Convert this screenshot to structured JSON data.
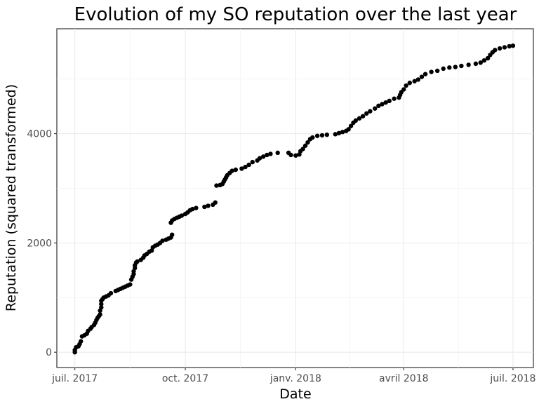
{
  "chart_data": {
    "type": "scatter",
    "title": "Evolution of my SO reputation over the last year",
    "xlabel": "Date",
    "ylabel": "Reputation (squared transformed)",
    "x_ticks": [
      {
        "date": "2017-07-01",
        "label": "juil. 2017"
      },
      {
        "date": "2017-10-01",
        "label": "oct. 2017"
      },
      {
        "date": "2018-01-01",
        "label": "janv. 2018"
      },
      {
        "date": "2018-04-01",
        "label": "avril 2018"
      },
      {
        "date": "2018-07-01",
        "label": "juil. 2018"
      }
    ],
    "y_ticks": [
      {
        "value": 0,
        "label": "0"
      },
      {
        "value": 2000,
        "label": "2000"
      },
      {
        "value": 4000,
        "label": "4000"
      }
    ],
    "xlim": [
      "2017-06-16",
      "2018-07-18"
    ],
    "ylim": [
      -280,
      5920
    ],
    "grid": true,
    "point_color": "#000000",
    "series": [
      {
        "points": [
          [
            "2017-07-01",
            0
          ],
          [
            "2017-07-01",
            40
          ],
          [
            "2017-07-02",
            90
          ],
          [
            "2017-07-04",
            110
          ],
          [
            "2017-07-05",
            150
          ],
          [
            "2017-07-06",
            200
          ],
          [
            "2017-07-07",
            290
          ],
          [
            "2017-07-09",
            310
          ],
          [
            "2017-07-11",
            340
          ],
          [
            "2017-07-12",
            390
          ],
          [
            "2017-07-14",
            430
          ],
          [
            "2017-07-15",
            460
          ],
          [
            "2017-07-17",
            500
          ],
          [
            "2017-07-18",
            540
          ],
          [
            "2017-07-19",
            590
          ],
          [
            "2017-07-20",
            630
          ],
          [
            "2017-07-21",
            660
          ],
          [
            "2017-07-22",
            690
          ],
          [
            "2017-07-22",
            760
          ],
          [
            "2017-07-23",
            820
          ],
          [
            "2017-07-23",
            880
          ],
          [
            "2017-07-23",
            940
          ],
          [
            "2017-07-24",
            970
          ],
          [
            "2017-07-25",
            1000
          ],
          [
            "2017-07-27",
            1020
          ],
          [
            "2017-07-29",
            1040
          ],
          [
            "2017-07-31",
            1080
          ],
          [
            "2017-08-04",
            1120
          ],
          [
            "2017-08-06",
            1140
          ],
          [
            "2017-08-08",
            1160
          ],
          [
            "2017-08-10",
            1180
          ],
          [
            "2017-08-12",
            1200
          ],
          [
            "2017-08-14",
            1220
          ],
          [
            "2017-08-16",
            1240
          ],
          [
            "2017-08-17",
            1330
          ],
          [
            "2017-08-18",
            1380
          ],
          [
            "2017-08-19",
            1430
          ],
          [
            "2017-08-19",
            1480
          ],
          [
            "2017-08-20",
            1540
          ],
          [
            "2017-08-20",
            1590
          ],
          [
            "2017-08-21",
            1640
          ],
          [
            "2017-08-22",
            1660
          ],
          [
            "2017-08-25",
            1690
          ],
          [
            "2017-08-27",
            1730
          ],
          [
            "2017-08-28",
            1770
          ],
          [
            "2017-08-30",
            1800
          ],
          [
            "2017-09-01",
            1840
          ],
          [
            "2017-09-03",
            1860
          ],
          [
            "2017-09-04",
            1920
          ],
          [
            "2017-09-06",
            1950
          ],
          [
            "2017-09-08",
            1970
          ],
          [
            "2017-09-10",
            2000
          ],
          [
            "2017-09-12",
            2040
          ],
          [
            "2017-09-15",
            2060
          ],
          [
            "2017-09-17",
            2080
          ],
          [
            "2017-09-19",
            2100
          ],
          [
            "2017-09-20",
            2150
          ],
          [
            "2017-09-19",
            2370
          ],
          [
            "2017-09-20",
            2410
          ],
          [
            "2017-09-22",
            2440
          ],
          [
            "2017-09-24",
            2460
          ],
          [
            "2017-09-26",
            2480
          ],
          [
            "2017-09-28",
            2500
          ],
          [
            "2017-10-01",
            2530
          ],
          [
            "2017-10-03",
            2560
          ],
          [
            "2017-10-05",
            2600
          ],
          [
            "2017-10-07",
            2620
          ],
          [
            "2017-10-10",
            2640
          ],
          [
            "2017-10-17",
            2660
          ],
          [
            "2017-10-20",
            2680
          ],
          [
            "2017-10-24",
            2700
          ],
          [
            "2017-10-26",
            2740
          ],
          [
            "2017-10-27",
            3050
          ],
          [
            "2017-10-30",
            3060
          ],
          [
            "2017-11-01",
            3080
          ],
          [
            "2017-11-02",
            3120
          ],
          [
            "2017-11-03",
            3160
          ],
          [
            "2017-11-04",
            3200
          ],
          [
            "2017-11-05",
            3240
          ],
          [
            "2017-11-07",
            3280
          ],
          [
            "2017-11-09",
            3320
          ],
          [
            "2017-11-12",
            3340
          ],
          [
            "2017-11-17",
            3360
          ],
          [
            "2017-11-20",
            3390
          ],
          [
            "2017-11-23",
            3430
          ],
          [
            "2017-11-26",
            3480
          ],
          [
            "2017-11-30",
            3510
          ],
          [
            "2017-12-02",
            3550
          ],
          [
            "2017-12-05",
            3580
          ],
          [
            "2017-12-08",
            3610
          ],
          [
            "2017-12-11",
            3630
          ],
          [
            "2017-12-17",
            3650
          ],
          [
            "2017-12-26",
            3650
          ],
          [
            "2017-12-28",
            3610
          ],
          [
            "2018-01-01",
            3600
          ],
          [
            "2018-01-04",
            3620
          ],
          [
            "2018-01-05",
            3680
          ],
          [
            "2018-01-07",
            3720
          ],
          [
            "2018-01-09",
            3780
          ],
          [
            "2018-01-11",
            3840
          ],
          [
            "2018-01-13",
            3900
          ],
          [
            "2018-01-15",
            3930
          ],
          [
            "2018-01-19",
            3960
          ],
          [
            "2018-01-23",
            3970
          ],
          [
            "2018-01-27",
            3980
          ],
          [
            "2018-02-03",
            3990
          ],
          [
            "2018-02-06",
            4010
          ],
          [
            "2018-02-09",
            4030
          ],
          [
            "2018-02-12",
            4050
          ],
          [
            "2018-02-14",
            4080
          ],
          [
            "2018-02-16",
            4140
          ],
          [
            "2018-02-18",
            4200
          ],
          [
            "2018-02-20",
            4240
          ],
          [
            "2018-02-23",
            4280
          ],
          [
            "2018-02-26",
            4320
          ],
          [
            "2018-03-01",
            4370
          ],
          [
            "2018-03-04",
            4410
          ],
          [
            "2018-03-08",
            4460
          ],
          [
            "2018-03-11",
            4510
          ],
          [
            "2018-03-14",
            4540
          ],
          [
            "2018-03-17",
            4570
          ],
          [
            "2018-03-20",
            4600
          ],
          [
            "2018-03-24",
            4640
          ],
          [
            "2018-03-28",
            4660
          ],
          [
            "2018-03-29",
            4710
          ],
          [
            "2018-03-30",
            4760
          ],
          [
            "2018-04-01",
            4810
          ],
          [
            "2018-04-03",
            4880
          ],
          [
            "2018-04-06",
            4930
          ],
          [
            "2018-04-10",
            4960
          ],
          [
            "2018-04-13",
            4990
          ],
          [
            "2018-04-16",
            5040
          ],
          [
            "2018-04-19",
            5090
          ],
          [
            "2018-04-24",
            5130
          ],
          [
            "2018-04-29",
            5150
          ],
          [
            "2018-05-04",
            5190
          ],
          [
            "2018-05-09",
            5210
          ],
          [
            "2018-05-14",
            5220
          ],
          [
            "2018-05-19",
            5240
          ],
          [
            "2018-05-25",
            5260
          ],
          [
            "2018-05-31",
            5280
          ],
          [
            "2018-06-04",
            5300
          ],
          [
            "2018-06-07",
            5340
          ],
          [
            "2018-06-10",
            5380
          ],
          [
            "2018-06-12",
            5440
          ],
          [
            "2018-06-14",
            5490
          ],
          [
            "2018-06-16",
            5530
          ],
          [
            "2018-06-20",
            5560
          ],
          [
            "2018-06-24",
            5580
          ],
          [
            "2018-06-28",
            5600
          ],
          [
            "2018-07-01",
            5610
          ]
        ]
      }
    ]
  }
}
